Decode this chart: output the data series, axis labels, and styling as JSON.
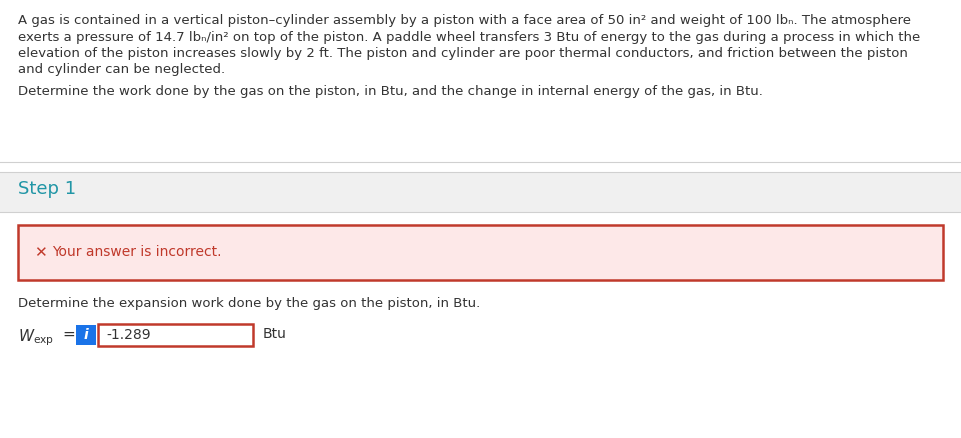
{
  "bg_color": "#f0f0f0",
  "white": "#ffffff",
  "problem_text_lines": [
    "A gas is contained in a vertical piston–cylinder assembly by a piston with a face area of 50 in² and weight of 100 lbₙ. The atmosphere",
    "exerts a pressure of 14.7 lbₙ/in² on top of the piston. A paddle wheel transfers 3 Btu of energy to the gas during a process in which the",
    "elevation of the piston increases slowly by 2 ft. The piston and cylinder are poor thermal conductors, and friction between the piston",
    "and cylinder can be neglected."
  ],
  "determine_text": "Determine the work done by the gas on the piston, in Btu, and the change in internal energy of the gas, in Btu.",
  "step1_text": "Step 1",
  "step1_color": "#2196a6",
  "incorrect_text": "Your answer is incorrect.",
  "incorrect_text_color": "#c0392b",
  "incorrect_bg": "#fde8e8",
  "incorrect_border": "#c0392b",
  "expansion_text": "Determine the expansion work done by the gas on the piston, in Btu.",
  "wexp_value": "-1.289",
  "wexp_unit": "Btu",
  "input_border": "#c0392b",
  "input_bg": "#ffffff",
  "info_btn_color": "#1a73e8",
  "separator_color": "#d0d0d0",
  "text_color": "#333333",
  "font_size": 9.5,
  "step1_fontsize": 13.0
}
